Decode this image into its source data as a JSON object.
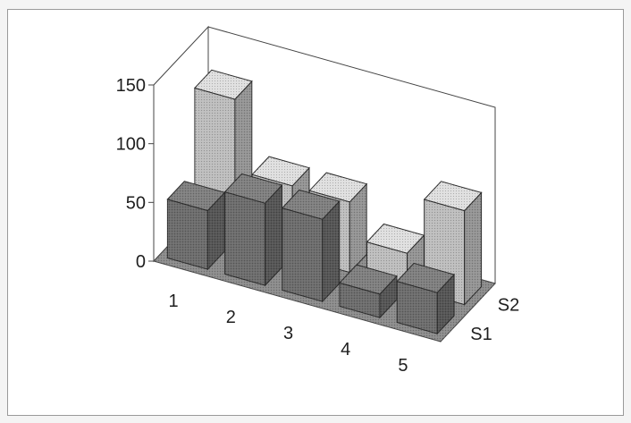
{
  "chart_data": {
    "type": "bar",
    "style": "3d-column",
    "categories": [
      "1",
      "2",
      "3",
      "4",
      "5"
    ],
    "series": [
      {
        "name": "S1",
        "values": [
          50,
          70,
          70,
          20,
          35
        ],
        "color": "#6b6b6b"
      },
      {
        "name": "S2",
        "values": [
          120,
          60,
          60,
          30,
          80
        ],
        "color": "#bdbdbd"
      }
    ],
    "y_ticks": [
      "0",
      "50",
      "100",
      "150"
    ],
    "ylim": [
      0,
      150
    ],
    "grid": false,
    "legend": "none",
    "title": "",
    "xlabel": "",
    "ylabel": ""
  }
}
